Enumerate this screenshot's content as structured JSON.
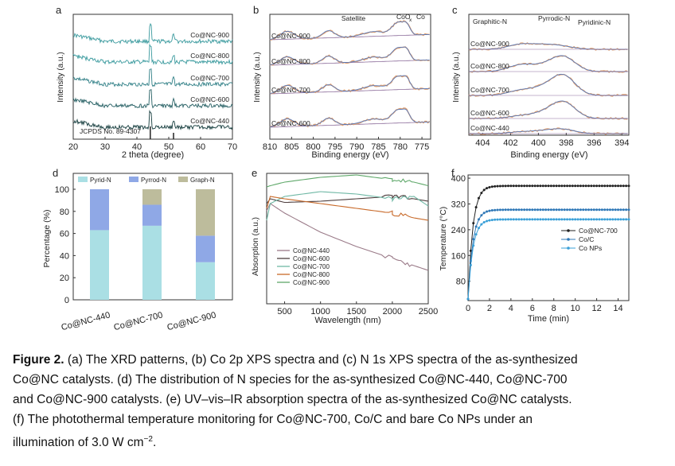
{
  "caption": {
    "label": "Figure 2.",
    "line1": " (a) The XRD patterns, (b) Co 2p XPS spectra and (c) N 1s XPS spectra of the as-synthesized",
    "line2": "Co@NC catalysts. (d) The distribution of N species for the as-synthesized Co@NC-440, Co@NC-700",
    "line3": "and Co@NC-900 catalysts. (e) UV–vis–IR absorption spectra of the as-synthesized Co@NC catalysts.",
    "line4": "(f) The photothermal temperature monitoring for Co@NC-700, Co/C and bare Co NPs under an",
    "line5a": "illumination of 3.0 W cm",
    "line5sup": "−2",
    "line5b": "."
  },
  "panels": {
    "a": {
      "letter": "a",
      "ylabel": "Intensity (a.u.)",
      "xlabel": "2 theta (degree)",
      "ref": "JCPDS No. 89-4307",
      "series": [
        "Co@NC-900",
        "Co@NC-800",
        "Co@NC-700",
        "Co@NC-600",
        "Co@NC-440"
      ]
    },
    "b": {
      "letter": "b",
      "ylabel": "Intensity (a.u.)",
      "xlabel": "Binding energy (eV)",
      "peaks": [
        "Satellite",
        "CoO",
        "x",
        "Co"
      ],
      "series": [
        "Co@NC-900",
        "Co@NC-800",
        "Co@NC-700",
        "Co@NC-600"
      ]
    },
    "c": {
      "letter": "c",
      "ylabel": "Intensity (a.u.)",
      "xlabel": "Binding energy (eV)",
      "peaks": [
        "Graphitic-N",
        "Pyrrodic-N",
        "Pyridinic-N"
      ],
      "series": [
        "Co@NC-900",
        "Co@NC-800",
        "Co@NC-700",
        "Co@NC-600",
        "Co@NC-440"
      ]
    },
    "d": {
      "letter": "d"
    },
    "e": {
      "letter": "e"
    },
    "f": {
      "letter": "f"
    }
  },
  "chart_data": [
    {
      "id": "a",
      "type": "line",
      "title": "",
      "xlabel": "2 theta (degree)",
      "ylabel": "Intensity (a.u.)",
      "xlim": [
        20,
        70
      ],
      "xticks": [
        20,
        30,
        40,
        50,
        60,
        70
      ],
      "series": [
        {
          "name": "Co@NC-900",
          "color": "#3a9a9e",
          "peaks": [
            44.2,
            51.5
          ]
        },
        {
          "name": "Co@NC-800",
          "color": "#3a9a9e",
          "peaks": [
            44.2,
            51.5
          ]
        },
        {
          "name": "Co@NC-700",
          "color": "#2f7f86",
          "peaks": [
            44.2,
            51.5
          ]
        },
        {
          "name": "Co@NC-600",
          "color": "#255f63",
          "peaks": [
            44.2,
            51.5
          ]
        },
        {
          "name": "Co@NC-440",
          "color": "#163d3e",
          "peaks": [
            44.2,
            51.5
          ]
        }
      ],
      "reference": {
        "name": "JCPDS No. 89-4307",
        "lines": [
          44.2,
          51.5
        ]
      }
    },
    {
      "id": "b",
      "type": "line",
      "xlabel": "Binding energy (eV)",
      "ylabel": "Intensity (a.u.)",
      "xlim": [
        810,
        773
      ],
      "xticks": [
        810,
        805,
        800,
        795,
        790,
        785,
        780,
        775
      ],
      "series": [
        {
          "name": "Co@NC-900",
          "peaks": [
            796,
            786,
            780.5,
            778.5
          ]
        },
        {
          "name": "Co@NC-800",
          "peaks": [
            796,
            786,
            780.5,
            778.5
          ]
        },
        {
          "name": "Co@NC-700",
          "peaks": [
            796,
            786,
            780.5,
            778.5
          ]
        },
        {
          "name": "Co@NC-600",
          "peaks": [
            796,
            786,
            780.5,
            778.5
          ]
        }
      ]
    },
    {
      "id": "c",
      "type": "line",
      "xlabel": "Binding energy (eV)",
      "ylabel": "Intensity (a.u.)",
      "xlim": [
        405,
        393.5
      ],
      "xticks": [
        404,
        402,
        400,
        398,
        396,
        394
      ],
      "series": [
        {
          "name": "Co@NC-900"
        },
        {
          "name": "Co@NC-800"
        },
        {
          "name": "Co@NC-700"
        },
        {
          "name": "Co@NC-600"
        },
        {
          "name": "Co@NC-440"
        }
      ]
    },
    {
      "id": "d",
      "type": "bar",
      "stacked": true,
      "ylabel": "Percentage (%)",
      "ylim": [
        0,
        100
      ],
      "yticks": [
        0,
        20,
        40,
        60,
        80,
        100
      ],
      "categories": [
        "Co@NC-440",
        "Co@NC-700",
        "Co@NC-900"
      ],
      "series": [
        {
          "name": "Pyrid-N",
          "color": "#aadfe4",
          "values": [
            63,
            67,
            34
          ]
        },
        {
          "name": "Pyrrod-N",
          "color": "#8fa8e6",
          "values": [
            37,
            19,
            24
          ]
        },
        {
          "name": "Graph-N",
          "color": "#bdbc9c",
          "values": [
            0,
            14,
            42
          ]
        }
      ]
    },
    {
      "id": "e",
      "type": "line",
      "xlabel": "Wavelength (nm)",
      "ylabel": "Absorption (a.u.)",
      "xlim": [
        250,
        2500
      ],
      "xticks": [
        500,
        1000,
        1500,
        2000,
        2500
      ],
      "series": [
        {
          "name": "Co@NC-440",
          "color": "#9a7a88",
          "x": [
            250,
            300,
            500,
            1000,
            1500,
            2000,
            2300,
            2500
          ],
          "y": [
            0.78,
            0.84,
            0.76,
            0.6,
            0.48,
            0.38,
            0.32,
            0.28
          ]
        },
        {
          "name": "Co@NC-600",
          "color": "#4e3e3e",
          "x": [
            250,
            300,
            500,
            1000,
            1500,
            2000,
            2300,
            2500
          ],
          "y": [
            0.84,
            0.88,
            0.85,
            0.86,
            0.88,
            0.9,
            0.88,
            0.86
          ]
        },
        {
          "name": "Co@NC-700",
          "color": "#6fb8a5",
          "x": [
            250,
            300,
            500,
            1000,
            1500,
            2000,
            2300,
            2500
          ],
          "y": [
            0.7,
            0.84,
            0.9,
            0.94,
            0.92,
            0.88,
            0.9,
            0.82
          ]
        },
        {
          "name": "Co@NC-800",
          "color": "#c86a2a",
          "x": [
            250,
            300,
            500,
            1000,
            1500,
            2000,
            2300,
            2500
          ],
          "y": [
            0.8,
            0.9,
            0.88,
            0.84,
            0.8,
            0.76,
            0.72,
            0.7
          ]
        },
        {
          "name": "Co@NC-900",
          "color": "#5fa86a",
          "x": [
            250,
            300,
            500,
            1000,
            1500,
            2000,
            2300,
            2500
          ],
          "y": [
            0.98,
            0.99,
            1.02,
            1.06,
            1.08,
            1.04,
            1.02,
            0.99
          ]
        }
      ]
    },
    {
      "id": "f",
      "type": "line",
      "xlabel": "Time (min)",
      "ylabel": "Temperature (°C)",
      "xlim": [
        0,
        15
      ],
      "ylim": [
        20,
        410
      ],
      "xticks": [
        0,
        2,
        4,
        6,
        8,
        10,
        12,
        14
      ],
      "yticks": [
        80,
        160,
        240,
        320,
        400
      ],
      "series": [
        {
          "name": "Co@NC-700",
          "color": "#222222",
          "plateau": 376,
          "start": 25
        },
        {
          "name": "Co/C",
          "color": "#2f78b7",
          "plateau": 302,
          "start": 25
        },
        {
          "name": "Co NPs",
          "color": "#3aa0d8",
          "plateau": 272,
          "start": 25
        }
      ]
    }
  ]
}
